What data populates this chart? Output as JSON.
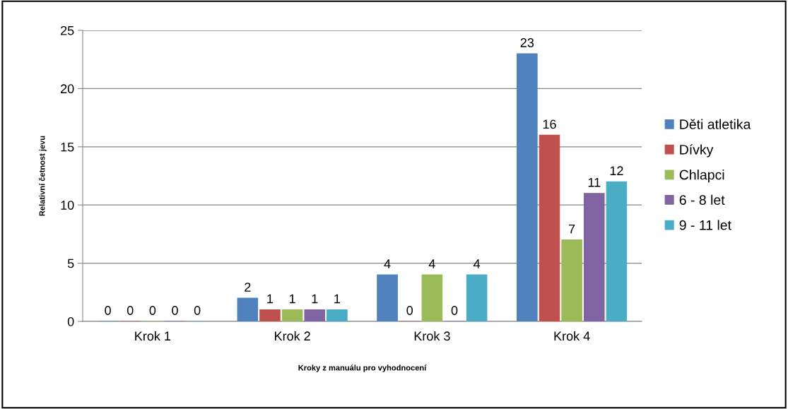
{
  "chart_data": {
    "type": "bar",
    "xlabel": "Kroky z manuálu pro vyhodnocení",
    "ylabel": "Relativní četnost jevu",
    "categories": [
      "Krok 1",
      "Krok 2",
      "Krok 3",
      "Krok 4"
    ],
    "series": [
      {
        "name": "Děti atletika",
        "color": "#4f81bd",
        "values": [
          0,
          2,
          4,
          23
        ]
      },
      {
        "name": "Dívky",
        "color": "#c0504d",
        "values": [
          0,
          1,
          0,
          16
        ]
      },
      {
        "name": "Chlapci",
        "color": "#9bbb59",
        "values": [
          0,
          1,
          4,
          7
        ]
      },
      {
        "name": "6 - 8 let",
        "color": "#8064a2",
        "values": [
          0,
          1,
          0,
          11
        ]
      },
      {
        "name": "9 - 11 let",
        "color": "#4bacc6",
        "values": [
          0,
          1,
          4,
          12
        ]
      }
    ],
    "ylim": [
      0,
      25
    ],
    "yticks": [
      0,
      5,
      10,
      15,
      20,
      25
    ],
    "grid": "y",
    "legend": "right",
    "data_labels": true
  }
}
